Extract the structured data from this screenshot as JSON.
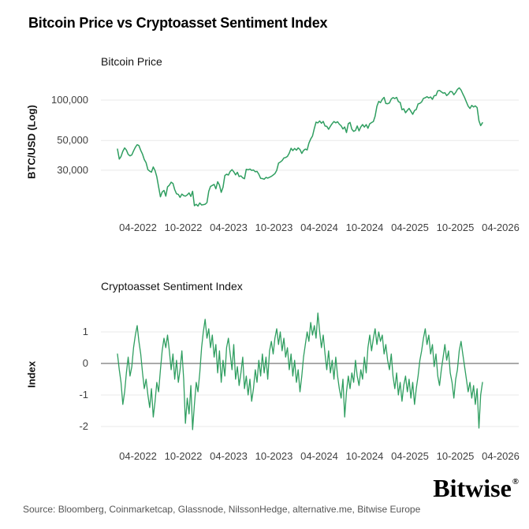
{
  "page": {
    "title": "Bitcoin Price vs Cryptoasset Sentiment Index",
    "source": "Source: Bloomberg, Coinmarketcap, Glassnode, NilssonHedge, alternative.me, Bitwise Europe",
    "brand": {
      "name": "Bitwise",
      "registered_mark": "®"
    },
    "colors": {
      "line_green": "#2f9e60",
      "grid": "#e9e9e9",
      "zero_line": "#555555",
      "tick_text": "#3f3f3f"
    }
  },
  "chart_data": [
    {
      "type": "line",
      "title": "Bitcoin Price",
      "ylabel": "BTC/USD (Log)",
      "yscale": "log",
      "ylim": [
        15000,
        130000
      ],
      "grid": true,
      "legend": "none",
      "yticks": [
        100000,
        50000,
        30000
      ],
      "ytick_labels": [
        "100,000",
        "50,000",
        "30,000"
      ],
      "xtick_labels": [
        "04-2022",
        "10-2022",
        "04-2023",
        "10-2023",
        "04-2024",
        "10-2024",
        "04-2025",
        "10-2025",
        "04-2026"
      ],
      "values_unit": "USD thousands, weekly samples from ~01-2022 to ~01-2026",
      "values": [
        43.1,
        36.3,
        37.9,
        41.5,
        44.0,
        42.4,
        39.4,
        38.4,
        39.0,
        41.8,
        44.5,
        46.5,
        45.8,
        42.2,
        39.5,
        36.0,
        34.1,
        30.3,
        29.5,
        29.0,
        31.7,
        29.8,
        26.8,
        22.5,
        19.0,
        20.6,
        21.2,
        19.2,
        22.5,
        23.2,
        24.4,
        23.9,
        21.5,
        20.0,
        19.8,
        18.8,
        19.9,
        19.4,
        19.2,
        19.6,
        20.3,
        19.1,
        20.9,
        16.3,
        16.7,
        16.2,
        17.1,
        16.5,
        16.6,
        16.7,
        17.2,
        20.9,
        22.7,
        23.1,
        23.5,
        21.8,
        24.6,
        23.2,
        20.5,
        22.4,
        27.4,
        28.0,
        27.6,
        29.4,
        30.3,
        29.2,
        27.7,
        28.9,
        26.9,
        27.2,
        26.3,
        25.9,
        30.5,
        30.2,
        30.6,
        29.9,
        30.1,
        29.2,
        29.4,
        28.0,
        26.1,
        26.0,
        25.7,
        26.5,
        26.2,
        26.6,
        27.0,
        27.6,
        28.3,
        29.9,
        33.9,
        34.5,
        35.4,
        37.0,
        37.3,
        38.0,
        40.2,
        43.7,
        42.0,
        43.6,
        42.3,
        44.0,
        42.8,
        40.0,
        42.1,
        43.1,
        42.5,
        47.7,
        51.3,
        54.0,
        61.5,
        68.5,
        67.6,
        69.9,
        67.2,
        69.4,
        64.0,
        63.8,
        60.6,
        63.9,
        66.9,
        69.3,
        67.7,
        69.0,
        66.2,
        64.3,
        60.9,
        63.0,
        57.3,
        66.7,
        68.2,
        60.7,
        58.5,
        59.4,
        64.1,
        59.0,
        63.2,
        65.7,
        62.9,
        65.6,
        61.7,
        66.6,
        68.0,
        69.3,
        75.9,
        90.0,
        97.9,
        95.8,
        101.3,
        104.8,
        94.3,
        93.9,
        95.2,
        102.1,
        104.5,
        102.7,
        104.9,
        97.5,
        96.2,
        84.8,
        86.1,
        80.5,
        83.9,
        86.8,
        82.5,
        78.4,
        83.6,
        85.1,
        93.7,
        94.6,
        96.9,
        103.0,
        104.2,
        106.1,
        103.8,
        105.5,
        101.4,
        107.9,
        108.3,
        117.4,
        118.1,
        115.3,
        112.8,
        113.6,
        108.1,
        111.2,
        116.0,
        115.5,
        109.6,
        114.1,
        120.3,
        123.6,
        118.9,
        111.4,
        104.6,
        96.8,
        90.2,
        86.6,
        91.3,
        88.9,
        90.6,
        87.9,
        70.2,
        64.5,
        67.8
      ]
    },
    {
      "type": "line",
      "title": "Cryptoasset Sentiment Index",
      "ylabel": "Index",
      "yscale": "linear",
      "ylim": [
        -2.2,
        1.7
      ],
      "grid": true,
      "legend": "none",
      "zero_line": true,
      "yticks": [
        1,
        0,
        -1,
        -2
      ],
      "ytick_labels": [
        "1",
        "0",
        "-1",
        "-2"
      ],
      "xtick_labels": [
        "04-2022",
        "10-2022",
        "04-2023",
        "10-2023",
        "04-2024",
        "10-2024",
        "04-2025",
        "10-2025",
        "04-2026"
      ],
      "values_unit": "index z-score, weekly samples from ~01-2022 to ~01-2026",
      "values": [
        0.3,
        -0.2,
        -0.6,
        -1.3,
        -0.9,
        -0.3,
        0.2,
        -0.4,
        -0.1,
        0.5,
        0.9,
        1.2,
        0.7,
        0.3,
        -0.3,
        -0.8,
        -0.5,
        -1.0,
        -1.4,
        -0.8,
        -1.7,
        -1.2,
        -0.6,
        -0.9,
        -0.2,
        0.4,
        0.8,
        0.5,
        0.9,
        0.4,
        -0.2,
        0.3,
        -0.5,
        0.1,
        -0.6,
        -0.2,
        0.4,
        -0.5,
        -1.9,
        -1.1,
        -1.6,
        -0.7,
        -2.1,
        -1.3,
        -0.6,
        -0.9,
        -0.3,
        0.5,
        1.0,
        1.4,
        0.8,
        1.1,
        0.5,
        0.9,
        0.2,
        0.6,
        -0.3,
        0.4,
        -0.6,
        0.1,
        -0.4,
        0.5,
        0.8,
        0.3,
        -0.2,
        0.6,
        -0.5,
        -0.1,
        -0.7,
        -0.3,
        0.2,
        -0.8,
        -0.4,
        -1.0,
        -0.5,
        -1.2,
        -0.8,
        -0.2,
        -0.6,
        0.1,
        -0.4,
        0.3,
        -0.3,
        0.2,
        -0.5,
        0.4,
        0.7,
        0.3,
        0.8,
        1.1,
        0.6,
        1.0,
        0.4,
        0.8,
        0.2,
        0.5,
        -0.2,
        0.3,
        -0.4,
        0.1,
        -0.6,
        -0.2,
        -0.9,
        -0.4,
        0.2,
        0.6,
        1.0,
        0.7,
        1.3,
        0.9,
        1.2,
        0.8,
        1.6,
        1.0,
        0.5,
        0.9,
        0.3,
        -0.2,
        0.4,
        -0.3,
        0.1,
        -0.5,
        0.2,
        -0.4,
        -0.8,
        -1.1,
        -0.5,
        -1.7,
        -0.9,
        -0.4,
        -0.8,
        -0.3,
        -0.6,
        0.1,
        -0.4,
        -0.7,
        -0.2,
        -0.5,
        0.2,
        -0.3,
        0.5,
        0.9,
        0.4,
        0.8,
        1.1,
        0.6,
        1.0,
        0.7,
        0.9,
        0.3,
        0.6,
        0.1,
        -0.2,
        0.3,
        -0.4,
        -0.8,
        -0.3,
        -1.0,
        -0.6,
        -1.2,
        -0.7,
        -0.4,
        -0.9,
        -0.5,
        -1.1,
        -0.6,
        -1.3,
        -0.8,
        -0.4,
        0.1,
        0.4,
        0.8,
        1.1,
        0.6,
        0.9,
        0.3,
        0.6,
        -0.1,
        0.3,
        -0.4,
        -0.7,
        -0.2,
        0.2,
        0.6,
        0.1,
        0.4,
        -0.3,
        -0.6,
        -1.1,
        -0.5,
        -0.2,
        0.4,
        0.7,
        0.3,
        -0.1,
        -0.5,
        -0.9,
        -0.6,
        -1.1,
        -0.7,
        -1.3,
        -0.8,
        -2.05,
        -1.0,
        -0.6
      ]
    }
  ]
}
